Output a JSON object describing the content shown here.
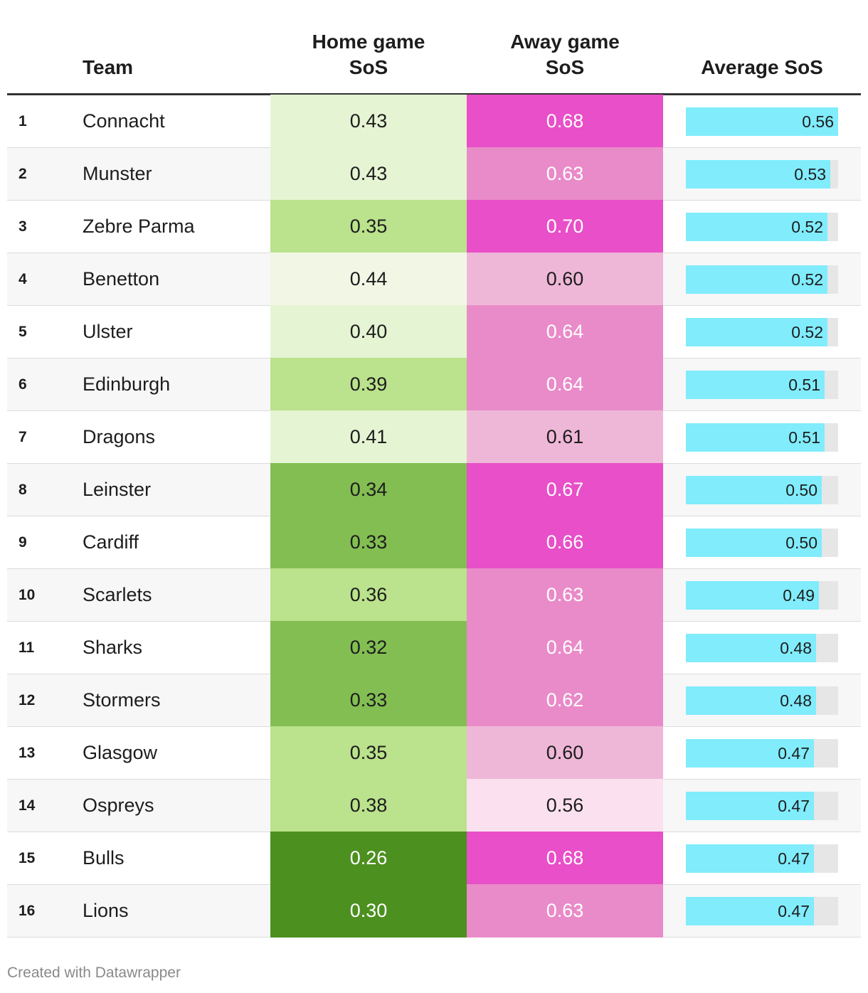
{
  "chart_data": {
    "type": "table",
    "columns": {
      "rank": "",
      "team": "Team",
      "home_line1": "Home game",
      "home_line2": "SoS",
      "away_line1": "Away game",
      "away_line2": "SoS",
      "avg": "Average SoS"
    },
    "bar_scale_max": 0.56,
    "rows": [
      {
        "rank": "1",
        "team": "Connacht",
        "home": "0.43",
        "away": "0.68",
        "avg": "0.56",
        "avg_value": 0.56,
        "home_color": "#e5f4d3",
        "home_text": "#1d1d1d",
        "away_color": "#e84fc8",
        "away_text": "#ffffff"
      },
      {
        "rank": "2",
        "team": "Munster",
        "home": "0.43",
        "away": "0.63",
        "avg": "0.53",
        "avg_value": 0.53,
        "home_color": "#e5f4d3",
        "home_text": "#1d1d1d",
        "away_color": "#e98bc9",
        "away_text": "#ffffff"
      },
      {
        "rank": "3",
        "team": "Zebre Parma",
        "home": "0.35",
        "away": "0.70",
        "avg": "0.52",
        "avg_value": 0.52,
        "home_color": "#bbe28c",
        "home_text": "#1d1d1d",
        "away_color": "#e84fc8",
        "away_text": "#ffffff"
      },
      {
        "rank": "4",
        "team": "Benetton",
        "home": "0.44",
        "away": "0.60",
        "avg": "0.52",
        "avg_value": 0.52,
        "home_color": "#f2f7e5",
        "home_text": "#1d1d1d",
        "away_color": "#efb7d7",
        "away_text": "#1d1d1d"
      },
      {
        "rank": "5",
        "team": "Ulster",
        "home": "0.40",
        "away": "0.64",
        "avg": "0.52",
        "avg_value": 0.52,
        "home_color": "#e5f4d3",
        "home_text": "#1d1d1d",
        "away_color": "#e98bc9",
        "away_text": "#ffffff"
      },
      {
        "rank": "6",
        "team": "Edinburgh",
        "home": "0.39",
        "away": "0.64",
        "avg": "0.51",
        "avg_value": 0.51,
        "home_color": "#bbe28c",
        "home_text": "#1d1d1d",
        "away_color": "#e98bc9",
        "away_text": "#ffffff"
      },
      {
        "rank": "7",
        "team": "Dragons",
        "home": "0.41",
        "away": "0.61",
        "avg": "0.51",
        "avg_value": 0.51,
        "home_color": "#e5f4d3",
        "home_text": "#1d1d1d",
        "away_color": "#efb7d7",
        "away_text": "#1d1d1d"
      },
      {
        "rank": "8",
        "team": "Leinster",
        "home": "0.34",
        "away": "0.67",
        "avg": "0.50",
        "avg_value": 0.5,
        "home_color": "#83be52",
        "home_text": "#1d1d1d",
        "away_color": "#e84fc8",
        "away_text": "#ffffff"
      },
      {
        "rank": "9",
        "team": "Cardiff",
        "home": "0.33",
        "away": "0.66",
        "avg": "0.50",
        "avg_value": 0.5,
        "home_color": "#83be52",
        "home_text": "#1d1d1d",
        "away_color": "#e84fc8",
        "away_text": "#ffffff"
      },
      {
        "rank": "10",
        "team": "Scarlets",
        "home": "0.36",
        "away": "0.63",
        "avg": "0.49",
        "avg_value": 0.49,
        "home_color": "#bbe28c",
        "home_text": "#1d1d1d",
        "away_color": "#e98bc9",
        "away_text": "#ffffff"
      },
      {
        "rank": "11",
        "team": "Sharks",
        "home": "0.32",
        "away": "0.64",
        "avg": "0.48",
        "avg_value": 0.48,
        "home_color": "#83be52",
        "home_text": "#1d1d1d",
        "away_color": "#e98bc9",
        "away_text": "#ffffff"
      },
      {
        "rank": "12",
        "team": "Stormers",
        "home": "0.33",
        "away": "0.62",
        "avg": "0.48",
        "avg_value": 0.48,
        "home_color": "#83be52",
        "home_text": "#1d1d1d",
        "away_color": "#e98bc9",
        "away_text": "#ffffff"
      },
      {
        "rank": "13",
        "team": "Glasgow",
        "home": "0.35",
        "away": "0.60",
        "avg": "0.47",
        "avg_value": 0.47,
        "home_color": "#bbe28c",
        "home_text": "#1d1d1d",
        "away_color": "#efb7d7",
        "away_text": "#1d1d1d"
      },
      {
        "rank": "14",
        "team": "Ospreys",
        "home": "0.38",
        "away": "0.56",
        "avg": "0.47",
        "avg_value": 0.47,
        "home_color": "#bbe28c",
        "home_text": "#1d1d1d",
        "away_color": "#fbe1ef",
        "away_text": "#1d1d1d"
      },
      {
        "rank": "15",
        "team": "Bulls",
        "home": "0.26",
        "away": "0.68",
        "avg": "0.47",
        "avg_value": 0.47,
        "home_color": "#4c901f",
        "home_text": "#ffffff",
        "away_color": "#e84fc8",
        "away_text": "#ffffff"
      },
      {
        "rank": "16",
        "team": "Lions",
        "home": "0.30",
        "away": "0.63",
        "avg": "0.47",
        "avg_value": 0.47,
        "home_color": "#4c901f",
        "home_text": "#ffffff",
        "away_color": "#e98bc9",
        "away_text": "#ffffff"
      }
    ]
  },
  "footer": {
    "credit": "Created with Datawrapper"
  }
}
